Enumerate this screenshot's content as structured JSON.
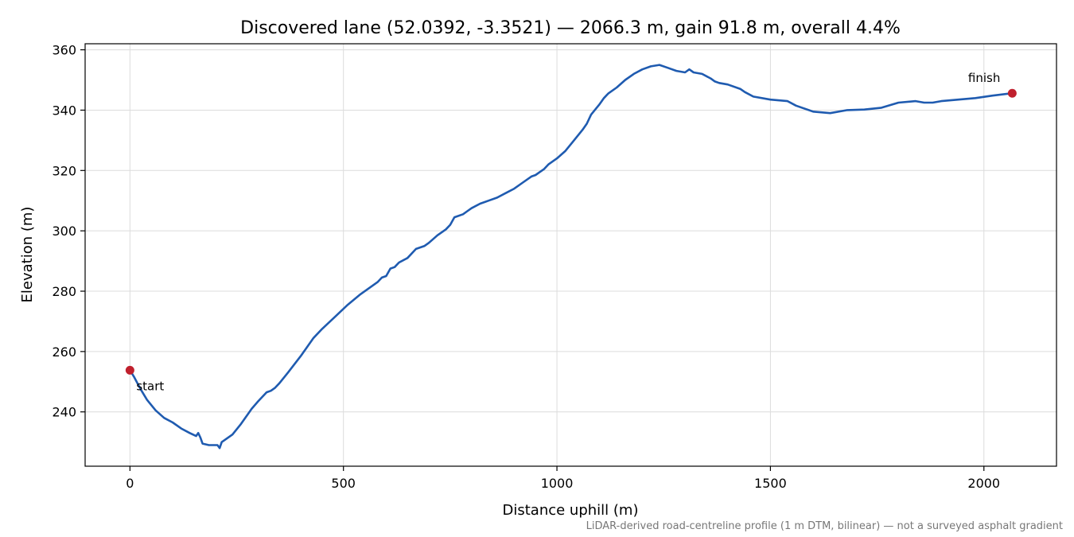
{
  "chart_data": {
    "type": "line",
    "title": "Discovered lane (52.0392, -3.3521) — 2066.3 m, gain 91.8 m, overall 4.4%",
    "xlabel": "Distance uphill (m)",
    "ylabel": "Elevation (m)",
    "xlim": [
      -105,
      2170
    ],
    "ylim": [
      222,
      362
    ],
    "xticks": [
      0,
      500,
      1000,
      1500,
      2000
    ],
    "yticks": [
      240,
      260,
      280,
      300,
      320,
      340,
      360
    ],
    "grid": true,
    "series": [
      {
        "color": "#1f5bb0",
        "x": [
          0,
          10,
          25,
          40,
          60,
          80,
          100,
          120,
          140,
          155,
          160,
          165,
          170,
          185,
          205,
          210,
          215,
          220,
          240,
          260,
          280,
          285,
          300,
          320,
          330,
          340,
          350,
          370,
          400,
          430,
          450,
          480,
          510,
          540,
          560,
          580,
          590,
          600,
          610,
          620,
          630,
          650,
          670,
          690,
          700,
          720,
          740,
          750,
          760,
          780,
          790,
          800,
          820,
          840,
          860,
          880,
          900,
          920,
          940,
          950,
          960,
          970,
          980,
          1000,
          1020,
          1040,
          1060,
          1070,
          1080,
          1100,
          1110,
          1120,
          1140,
          1160,
          1180,
          1200,
          1220,
          1240,
          1260,
          1280,
          1300,
          1310,
          1320,
          1340,
          1360,
          1370,
          1380,
          1400,
          1430,
          1440,
          1460,
          1500,
          1540,
          1560,
          1600,
          1640,
          1680,
          1720,
          1760,
          1800,
          1840,
          1860,
          1880,
          1900,
          1940,
          1980,
          2020,
          2066
        ],
        "y": [
          253.8,
          251.5,
          247.5,
          244.0,
          240.5,
          238.0,
          236.5,
          234.5,
          233.0,
          232.0,
          233.0,
          231.5,
          229.5,
          229.0,
          229.0,
          228.0,
          230.0,
          230.5,
          232.5,
          236.0,
          240.0,
          241.0,
          243.5,
          246.5,
          247.0,
          248.0,
          249.5,
          253.0,
          258.5,
          264.5,
          267.5,
          271.5,
          275.5,
          279.0,
          281.0,
          283.0,
          284.5,
          285.0,
          287.5,
          288.0,
          289.5,
          291.0,
          294.0,
          295.0,
          296.0,
          298.5,
          300.5,
          302.0,
          304.5,
          305.5,
          306.5,
          307.5,
          309.0,
          310.0,
          311.0,
          312.5,
          314.0,
          316.0,
          318.0,
          318.5,
          319.5,
          320.5,
          322.0,
          324.0,
          326.5,
          330.0,
          333.5,
          335.5,
          338.5,
          342.0,
          344.0,
          345.5,
          347.5,
          350.0,
          352.0,
          353.5,
          354.5,
          355.0,
          354.0,
          353.0,
          352.5,
          353.5,
          352.5,
          352.0,
          350.5,
          349.5,
          349.0,
          348.5,
          347.0,
          346.0,
          344.5,
          343.5,
          343.0,
          341.5,
          339.5,
          339.0,
          340.0,
          340.2,
          340.8,
          342.5,
          343.0,
          342.5,
          342.5,
          343.0,
          343.5,
          344.0,
          344.8,
          345.6
        ]
      }
    ],
    "markers": [
      {
        "label": "start",
        "x": 0,
        "y": 253.8,
        "color": "#c0202d"
      },
      {
        "label": "finish",
        "x": 2066.3,
        "y": 345.6,
        "color": "#c0202d"
      }
    ],
    "footnote": "LiDAR-derived road-centreline profile (1 m DTM, bilinear) — not a surveyed asphalt gradient"
  }
}
